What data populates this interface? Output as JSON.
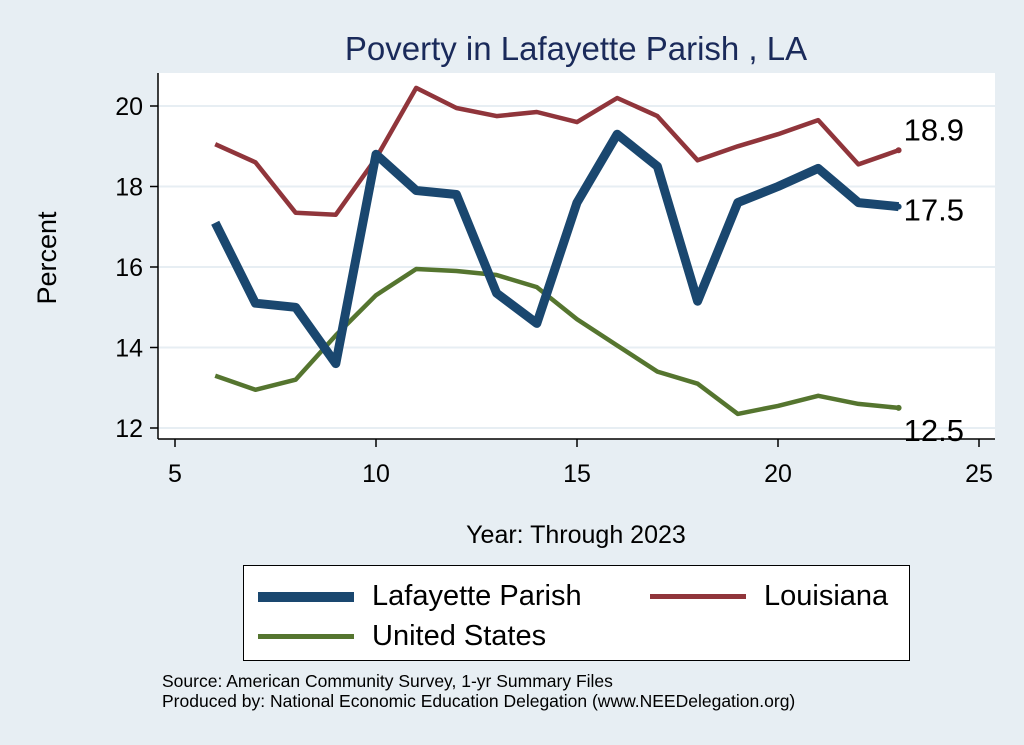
{
  "chart_data": {
    "type": "line",
    "title": "Poverty in Lafayette Parish , LA",
    "xlabel": "Year: Through 2023",
    "ylabel": "Percent",
    "xlim": [
      5,
      25
    ],
    "ylim": [
      11.6,
      20.8
    ],
    "xticks": [
      5,
      10,
      15,
      20,
      25
    ],
    "yticks": [
      12,
      14,
      16,
      18,
      20
    ],
    "grid": true,
    "series": [
      {
        "name": "Lafayette Parish",
        "color": "#1a476f",
        "width": "thick",
        "x": [
          6,
          7,
          8,
          9,
          10,
          11,
          12,
          13,
          14,
          15,
          16,
          17,
          18,
          19,
          20,
          21,
          22,
          23
        ],
        "values": [
          17.1,
          15.1,
          15.0,
          13.6,
          18.8,
          17.9,
          17.8,
          15.35,
          14.6,
          17.6,
          19.3,
          18.5,
          15.15,
          17.6,
          18.0,
          18.45,
          17.6,
          17.5
        ],
        "end_label": "17.5"
      },
      {
        "name": "Louisiana",
        "color": "#90353b",
        "width": "medium",
        "x": [
          6,
          7,
          8,
          9,
          10,
          11,
          12,
          13,
          14,
          15,
          16,
          17,
          18,
          19,
          20,
          21,
          22,
          23
        ],
        "values": [
          19.05,
          18.6,
          17.35,
          17.3,
          18.7,
          20.45,
          19.95,
          19.75,
          19.85,
          19.6,
          20.2,
          19.75,
          18.65,
          19.0,
          19.3,
          19.65,
          18.55,
          18.9
        ],
        "end_label": "18.9"
      },
      {
        "name": "United States",
        "color": "#55752f",
        "width": "medium",
        "x": [
          6,
          7,
          8,
          9,
          10,
          11,
          12,
          13,
          14,
          15,
          16,
          17,
          18,
          19,
          20,
          21,
          22,
          23
        ],
        "values": [
          13.3,
          12.95,
          13.2,
          14.3,
          15.3,
          15.95,
          15.9,
          15.8,
          15.5,
          14.7,
          14.05,
          13.4,
          13.1,
          12.35,
          12.55,
          12.8,
          12.6,
          12.5
        ],
        "end_label": "12.5"
      }
    ],
    "legend": {
      "position": "bottom",
      "entries": [
        "Lafayette Parish",
        "Louisiana",
        "United States"
      ]
    }
  },
  "colors": {
    "background": "#e7eef3",
    "plot_background": "#ffffff",
    "title": "#1a2a5a",
    "grid": "#e7eef3"
  },
  "source_lines": [
    "Source: American Community Survey, 1-yr Summary Files",
    "Produced by: National Economic Education Delegation (www.NEEDelegation.org)"
  ]
}
